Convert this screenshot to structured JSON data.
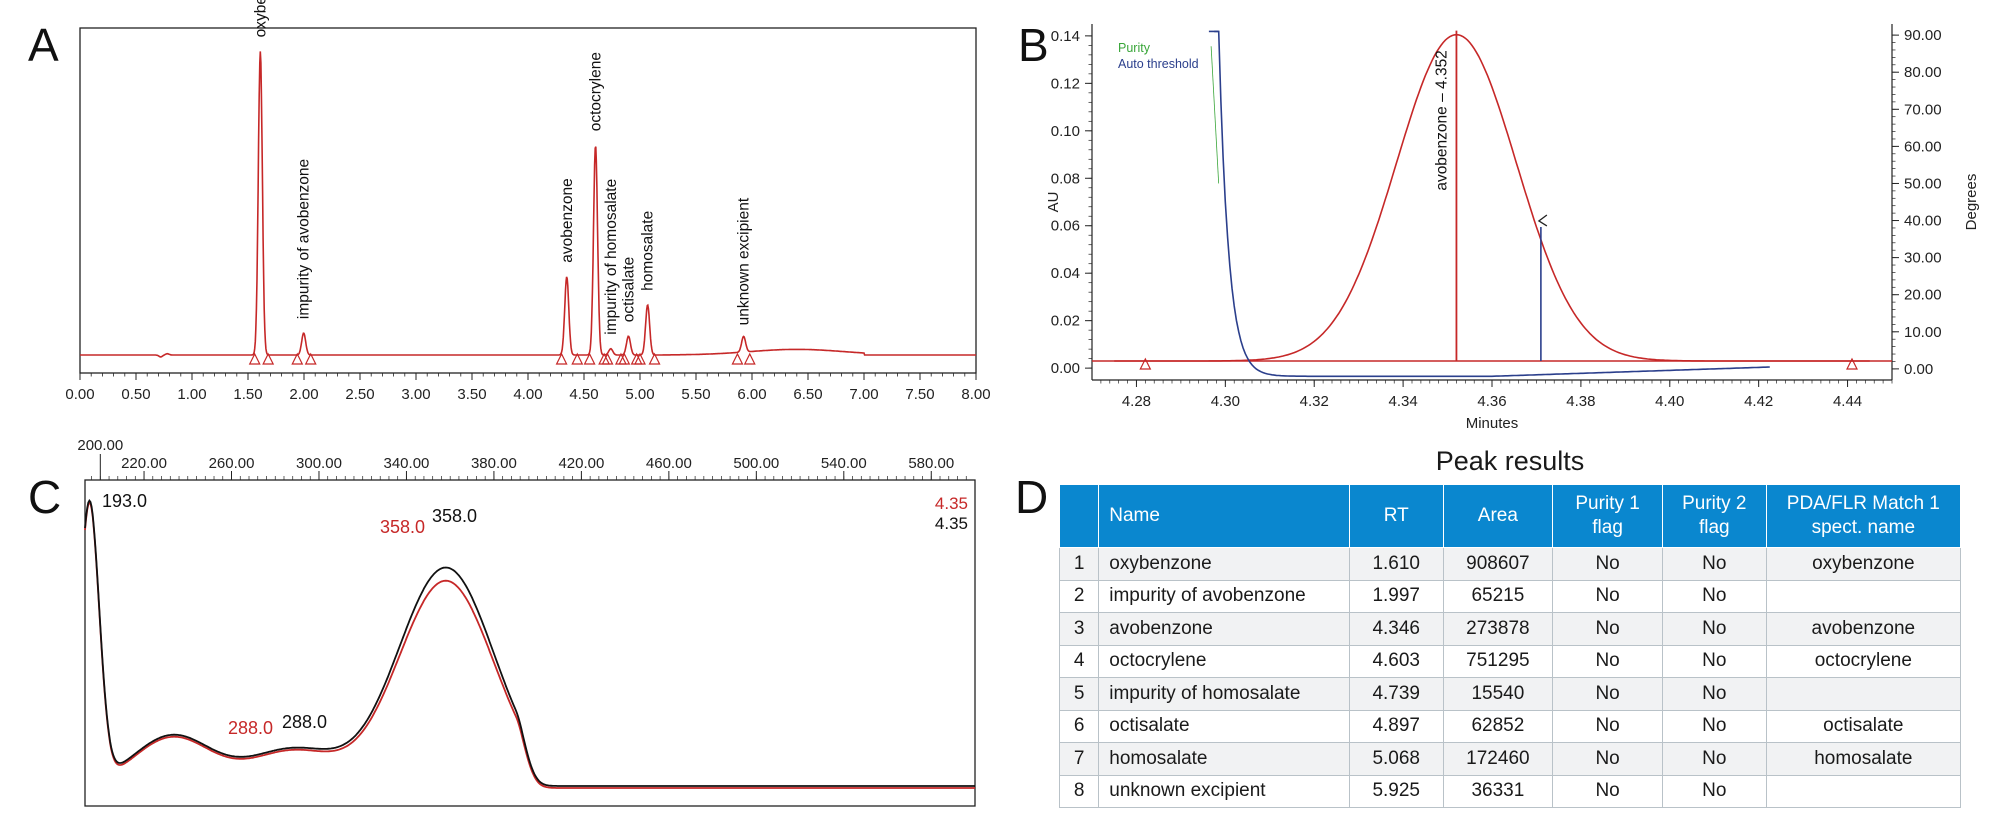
{
  "panels": {
    "a": "A",
    "b": "B",
    "c": "C",
    "d": "D"
  },
  "chart_data": [
    {
      "id": "A",
      "type": "line",
      "title": "",
      "xlabel": "",
      "ylabel": "",
      "xlim": [
        0,
        8
      ],
      "ticks": [
        "0.00",
        "0.50",
        "1.00",
        "1.50",
        "2.00",
        "2.50",
        "3.00",
        "3.50",
        "4.00",
        "4.50",
        "5.00",
        "5.50",
        "6.00",
        "6.50",
        "7.00",
        "7.50",
        "8.00"
      ],
      "grid": false,
      "color": "#c62828",
      "peaks": [
        {
          "name": "oxybenzone",
          "rt": 1.61,
          "height": 0.97
        },
        {
          "name": "impurity of avobenzone",
          "rt": 1.997,
          "height": 0.07
        },
        {
          "name": "avobenzone",
          "rt": 4.346,
          "height": 0.25
        },
        {
          "name": "octocrylene",
          "rt": 4.603,
          "height": 0.67
        },
        {
          "name": "impurity of homosalate",
          "rt": 4.739,
          "height": 0.02
        },
        {
          "name": "octisalate",
          "rt": 4.897,
          "height": 0.06
        },
        {
          "name": "homosalate",
          "rt": 5.068,
          "height": 0.16
        },
        {
          "name": "unknown excipient",
          "rt": 5.925,
          "height": 0.05
        }
      ],
      "markers": [
        1.56,
        1.68,
        1.94,
        2.06,
        4.3,
        4.44,
        4.55,
        4.68,
        4.71,
        4.83,
        4.86,
        4.97,
        5.0,
        5.13,
        5.87,
        5.98
      ]
    },
    {
      "id": "B",
      "type": "line",
      "title": "",
      "xlabel": "Minutes",
      "ylabel": "AU",
      "ylabel2": "Degrees",
      "xlim": [
        4.27,
        4.45
      ],
      "ylim": [
        -0.005,
        0.145
      ],
      "ylim2": [
        -3,
        93
      ],
      "xticks": [
        "4.28",
        "4.30",
        "4.32",
        "4.34",
        "4.36",
        "4.38",
        "4.40",
        "4.42",
        "4.44"
      ],
      "yticks": [
        "0.00",
        "0.02",
        "0.04",
        "0.06",
        "0.08",
        "0.10",
        "0.12",
        "0.14"
      ],
      "yticks2": [
        "0.00",
        "10.00",
        "20.00",
        "30.00",
        "40.00",
        "50.00",
        "60.00",
        "70.00",
        "80.00",
        "90.00"
      ],
      "legend": {
        "placement": "top-left",
        "items": [
          {
            "name": "Purity",
            "color": "#3aa63a"
          },
          {
            "name": "Auto threshold",
            "color": "#2b3f8c"
          }
        ]
      },
      "peak_label": "avobenzone – 4.352",
      "peak_apex": {
        "x": 4.352,
        "y": 0.1405
      },
      "baseline_y": 0.003,
      "cutoff": {
        "x": 4.371,
        "y": 0.062
      },
      "markers": [
        4.282,
        4.441
      ],
      "colors": {
        "peak": "#c62828",
        "threshold": "#2b3f8c",
        "purity": "#3aa63a"
      }
    },
    {
      "id": "C",
      "type": "line",
      "title": "",
      "xlabel": "",
      "ylabel": "",
      "xlim": [
        193,
        600
      ],
      "xticks": [
        "200.00",
        "220.00",
        "260.00",
        "300.00",
        "340.00",
        "380.00",
        "420.00",
        "460.00",
        "500.00",
        "540.00",
        "580.00"
      ],
      "series": [
        {
          "name": "4.35",
          "color": "#c62828"
        },
        {
          "name": "4.35",
          "color": "#111111"
        }
      ],
      "annotations": [
        {
          "text": "193.0",
          "color": "#111111"
        },
        {
          "text": "288.0",
          "color": "#c62828"
        },
        {
          "text": "288.0",
          "color": "#111111"
        },
        {
          "text": "358.0",
          "color": "#c62828"
        },
        {
          "text": "358.0",
          "color": "#111111"
        }
      ]
    }
  ],
  "table": {
    "title": "Peak results",
    "headers": [
      "",
      "Name",
      "RT",
      "Area",
      "Purity 1 flag",
      "Purity 2 flag",
      "PDA/FLR Match 1 spect. name"
    ],
    "rows": [
      [
        "1",
        "oxybenzone",
        "1.610",
        "908607",
        "No",
        "No",
        "oxybenzone"
      ],
      [
        "2",
        "impurity of avobenzone",
        "1.997",
        "65215",
        "No",
        "No",
        ""
      ],
      [
        "3",
        "avobenzone",
        "4.346",
        "273878",
        "No",
        "No",
        "avobenzone"
      ],
      [
        "4",
        "octocrylene",
        "4.603",
        "751295",
        "No",
        "No",
        "octocrylene"
      ],
      [
        "5",
        "impurity of homosalate",
        "4.739",
        "15540",
        "No",
        "No",
        ""
      ],
      [
        "6",
        "octisalate",
        "4.897",
        "62852",
        "No",
        "No",
        "octisalate"
      ],
      [
        "7",
        "homosalate",
        "5.068",
        "172460",
        "No",
        "No",
        "homosalate"
      ],
      [
        "8",
        "unknown excipient",
        "5.925",
        "36331",
        "No",
        "No",
        ""
      ]
    ]
  }
}
